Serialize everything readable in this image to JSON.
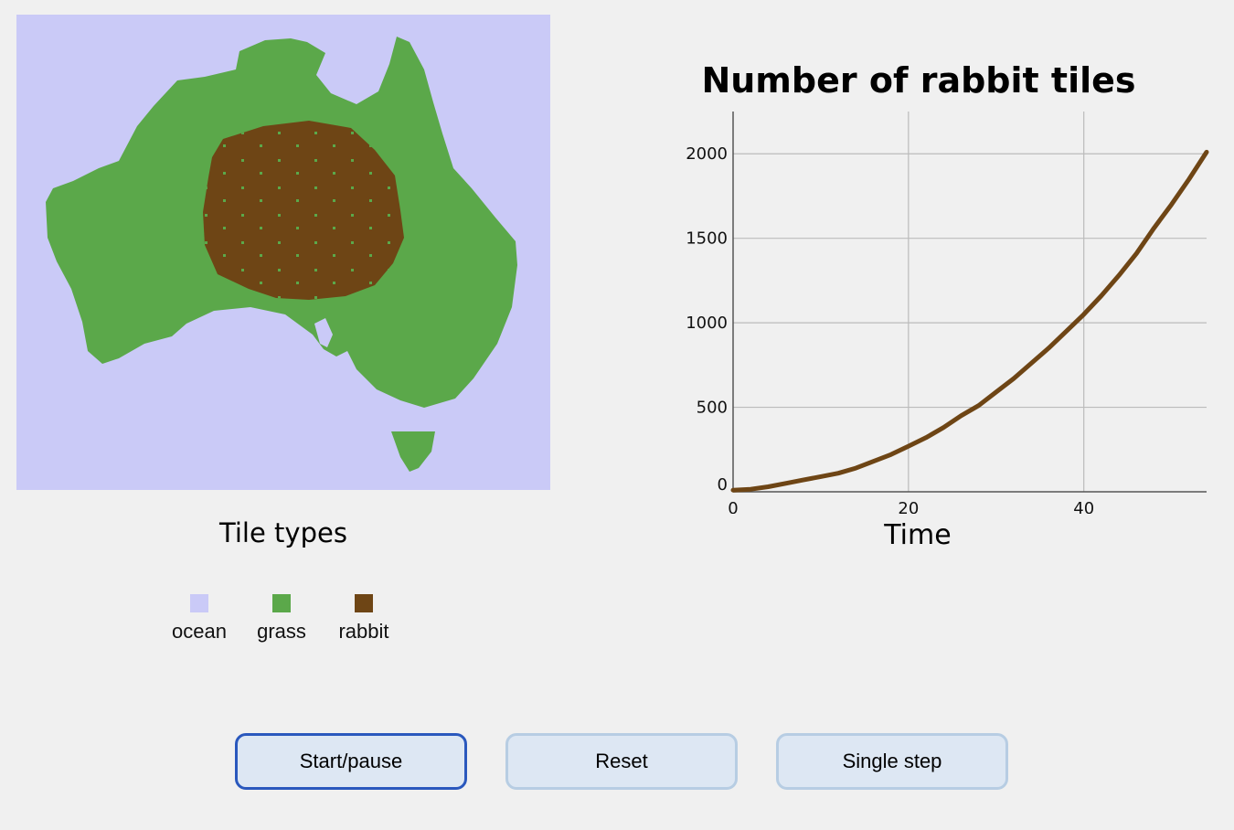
{
  "legend": {
    "title": "Tile types",
    "items": [
      {
        "label": "ocean",
        "color": "#cacaf7"
      },
      {
        "label": "grass",
        "color": "#5ba84a"
      },
      {
        "label": "rabbit",
        "color": "#6e4515"
      }
    ]
  },
  "chart_data": {
    "type": "line",
    "title": "Number of rabbit tiles",
    "xlabel": "Time",
    "ylabel": "",
    "xlim": [
      0,
      54
    ],
    "ylim": [
      0,
      2250
    ],
    "x_ticks": [
      0,
      20,
      40
    ],
    "y_ticks": [
      0,
      500,
      1000,
      1500,
      2000
    ],
    "grid": true,
    "line_color": "#6e4515",
    "series": [
      {
        "x": [
          0,
          2,
          4,
          6,
          8,
          10,
          12,
          14,
          16,
          18,
          20,
          22,
          24,
          26,
          28,
          30,
          32,
          34,
          36,
          38,
          40,
          42,
          44,
          46,
          48,
          50,
          52,
          54
        ],
        "values": [
          10,
          15,
          30,
          50,
          70,
          90,
          110,
          140,
          180,
          220,
          270,
          320,
          380,
          450,
          510,
          590,
          670,
          760,
          850,
          950,
          1050,
          1160,
          1280,
          1410,
          1560,
          1700,
          1850,
          2010
        ]
      }
    ]
  },
  "buttons": {
    "start": "Start/pause",
    "reset": "Reset",
    "step": "Single step"
  }
}
